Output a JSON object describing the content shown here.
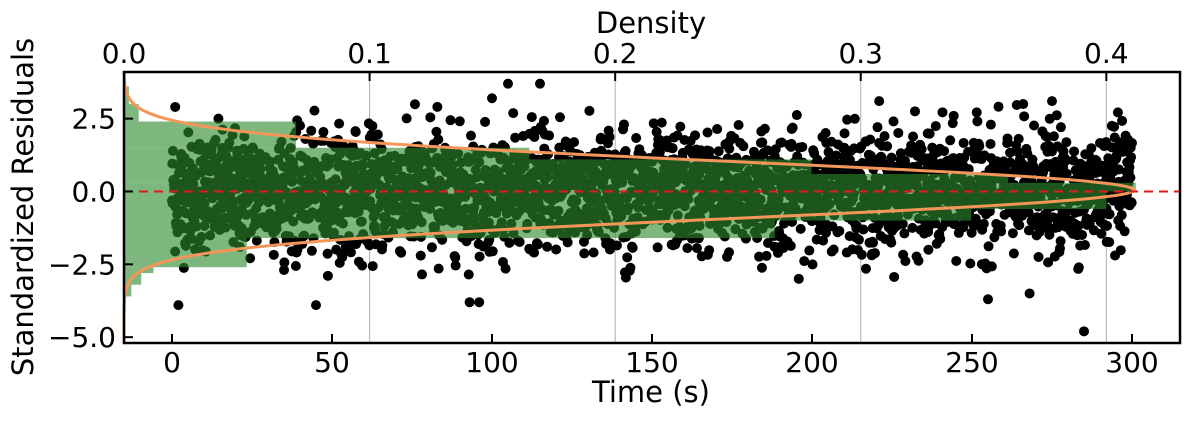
{
  "chart_data": {
    "type": "scatter",
    "title": "",
    "xlabel": "Time (s)",
    "ylabel": "Standardized Residuals",
    "top_xlabel": "Density",
    "xlim": [
      -15,
      315
    ],
    "ylim": [
      -5.2,
      4.1
    ],
    "density_lim": [
      0,
      0.43
    ],
    "x_ticks": [
      0,
      50,
      100,
      150,
      200,
      250,
      300
    ],
    "y_ticks": [
      -5.0,
      -2.5,
      0.0,
      2.5
    ],
    "y_tick_labels": [
      "−5.0",
      "−2.5",
      "0.0",
      "2.5"
    ],
    "density_ticks": [
      0.0,
      0.1,
      0.2,
      0.3,
      0.4
    ],
    "density_tick_labels": [
      "0.0",
      "0.1",
      "0.2",
      "0.3",
      "0.4"
    ],
    "reference_line": {
      "y": 0,
      "style": "dashed",
      "color": "#e31a1c"
    },
    "scatter": {
      "color": "#000000",
      "x_range": [
        0,
        300
      ],
      "approx_count": 3000,
      "distribution": "standard normal (mean 0, sd 1)",
      "visible_outliers": [
        {
          "x": 105,
          "y": 3.7
        },
        {
          "x": 115,
          "y": 3.7
        },
        {
          "x": 100,
          "y": 3.2
        },
        {
          "x": 1,
          "y": 2.9
        },
        {
          "x": 221,
          "y": 3.1
        },
        {
          "x": 266,
          "y": 3.0
        },
        {
          "x": 275,
          "y": 3.1
        },
        {
          "x": 45,
          "y": -3.9
        },
        {
          "x": 2,
          "y": -3.9
        },
        {
          "x": 93,
          "y": -3.8
        },
        {
          "x": 96,
          "y": -3.8
        },
        {
          "x": 255,
          "y": -3.7
        },
        {
          "x": 268,
          "y": -3.5
        },
        {
          "x": 285,
          "y": -4.8
        }
      ]
    },
    "histogram": {
      "color": "#2e8b2e",
      "opacity": 0.62,
      "orientation": "horizontal",
      "bins": [
        {
          "y0": -3.6,
          "y1": -3.2,
          "density": 0.003
        },
        {
          "y0": -3.2,
          "y1": -2.8,
          "density": 0.007
        },
        {
          "y0": -2.8,
          "y1": -2.6,
          "density": 0.012
        },
        {
          "y0": -2.6,
          "y1": -1.6,
          "density": 0.05
        },
        {
          "y0": -1.6,
          "y1": -1.0,
          "density": 0.265
        },
        {
          "y0": -1.0,
          "y1": -0.6,
          "density": 0.345
        },
        {
          "y0": -0.6,
          "y1": 0.0,
          "density": 0.4
        },
        {
          "y0": 0.0,
          "y1": 0.3,
          "density": 0.412
        },
        {
          "y0": 0.3,
          "y1": 0.6,
          "density": 0.36
        },
        {
          "y0": 0.6,
          "y1": 1.1,
          "density": 0.28
        },
        {
          "y0": 1.1,
          "y1": 1.5,
          "density": 0.165
        },
        {
          "y0": 1.5,
          "y1": 2.4,
          "density": 0.07
        },
        {
          "y0": 2.4,
          "y1": 3.0,
          "density": 0.006
        },
        {
          "y0": 3.0,
          "y1": 3.6,
          "density": 0.002
        }
      ]
    },
    "density_curve": {
      "distribution": "normal",
      "mean": 0.05,
      "sd": 0.97,
      "color": "#f4965a"
    },
    "grid": {
      "vertical_at_density_ticks": true,
      "horizontal": false
    }
  }
}
